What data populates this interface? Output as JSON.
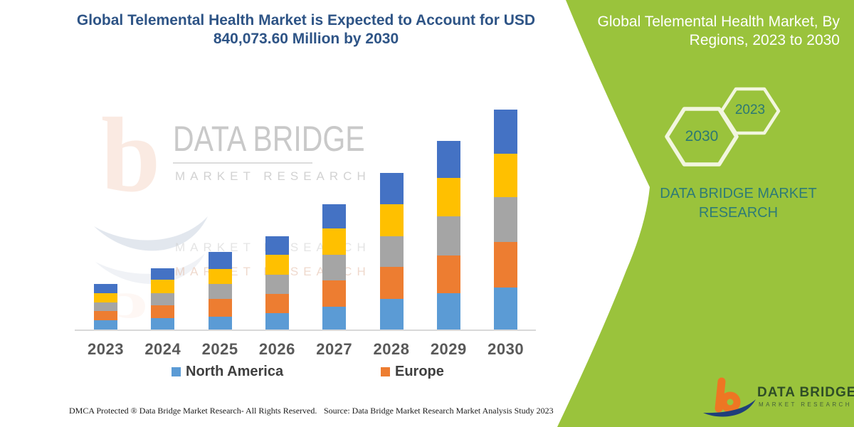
{
  "header": {
    "title_line1": "Global Telemental Health Market is Expected to Account for USD",
    "title_line2": "840,073.60 Million by 2030",
    "title_color": "#2e5486"
  },
  "chart_data": {
    "type": "bar",
    "stacked": true,
    "title": "Global Telemental Health Market is Expected to Account for USD 840,073.60 Million by 2030",
    "xlabel": "",
    "ylabel": "",
    "grid": false,
    "legend_position": "bottom",
    "categories": [
      "2023",
      "2024",
      "2025",
      "2026",
      "2027",
      "2028",
      "2029",
      "2030"
    ],
    "series": [
      {
        "name": "North America",
        "color": "#5B9BD5",
        "values": [
          14,
          17,
          19,
          24,
          33,
          44,
          52,
          60
        ]
      },
      {
        "name": "Europe",
        "color": "#ED7D31",
        "values": [
          13,
          18,
          25,
          27,
          37,
          45,
          53,
          64
        ]
      },
      {
        "name": "",
        "color": "#A5A5A5",
        "values": [
          12,
          17,
          21,
          27,
          36,
          43,
          55,
          63
        ]
      },
      {
        "name": "",
        "color": "#FFC000",
        "values": [
          13,
          19,
          21,
          28,
          37,
          45,
          54,
          61
        ]
      },
      {
        "name": "",
        "color": "#4472C4",
        "values": [
          13,
          16,
          24,
          26,
          34,
          44,
          52,
          62
        ]
      }
    ],
    "stack_totals": [
      65,
      87,
      110,
      132,
      177,
      221,
      266,
      310
    ],
    "value_units": "relative bar-height pixels (chart shows no y-axis or value labels)",
    "note": "Stacked bars of 5 regions; only North America and Europe appear in the visible legend. 2030 total corresponds to USD 840,073.60 Million per title."
  },
  "legend": [
    {
      "label": "North America",
      "color": "#5B9BD5"
    },
    {
      "label": "Europe",
      "color": "#ED7D31"
    }
  ],
  "watermark": {
    "title": "DATA BRIDGE",
    "subtitle": "MARKET RESEARCH"
  },
  "side_panel": {
    "bg_color": "#9ac33c",
    "heading_line1": "Global Telemental Health Market, By",
    "heading_line2": "Regions, 2023 to 2030",
    "hexagons": [
      {
        "label": "2030"
      },
      {
        "label": "2023"
      }
    ],
    "brand_line1": "DATA BRIDGE MARKET",
    "brand_line2": "RESEARCH",
    "brand_color": "#2e7b76",
    "hex_outline_color": "#f2f6df"
  },
  "footer": {
    "left": "DMCA Protected ® Data Bridge Market Research-  All Rights Reserved.",
    "right": "Source: Data Bridge Market Research  Market Analysis Study 2023"
  },
  "logo": {
    "line1": "DATA BRIDGE",
    "line2": "MARKET RESEARCH",
    "b_color": "#ee7623",
    "swoosh_color": "#1e3f7b"
  }
}
